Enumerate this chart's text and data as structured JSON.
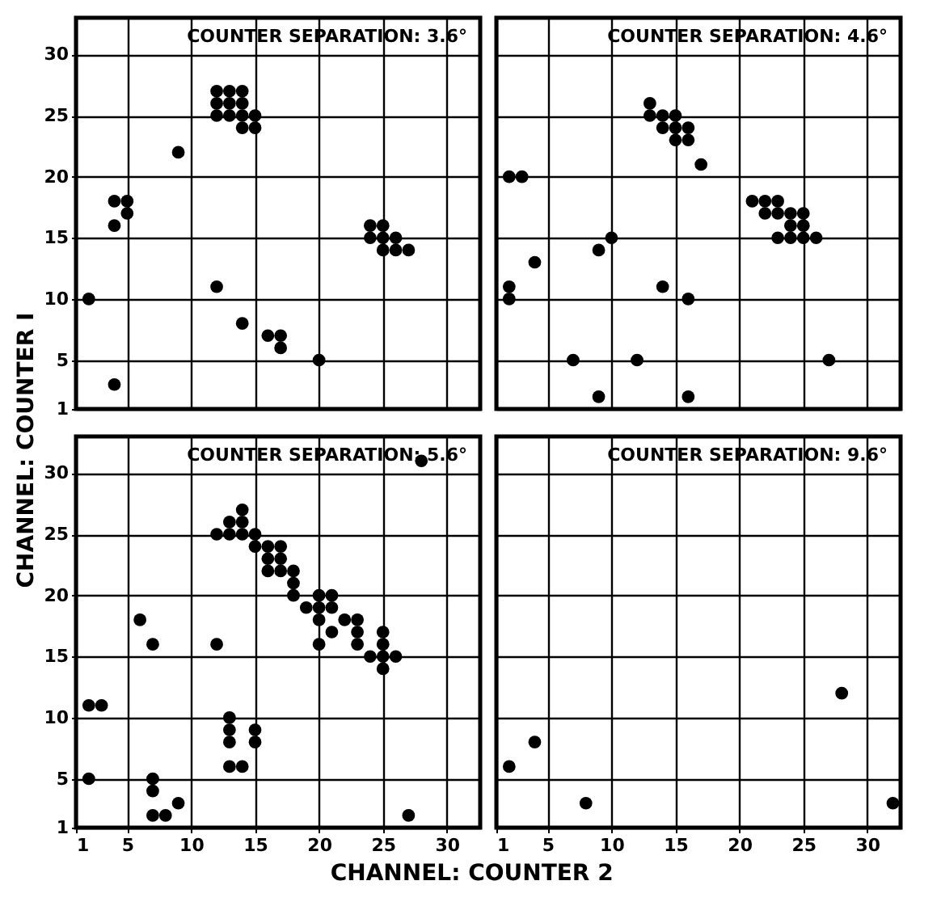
{
  "chart_data": [
    {
      "type": "scatter",
      "title": "COUNTER SEPARATION: 3.6°",
      "xlim": [
        1,
        32.6
      ],
      "ylim": [
        1,
        33
      ],
      "xticks": [
        1,
        5,
        10,
        15,
        20,
        25,
        30
      ],
      "yticks": [
        1,
        5,
        10,
        15,
        20,
        25,
        30
      ],
      "grid": true,
      "marker": "circle",
      "tick_labels": "y",
      "series": [
        {
          "color": "#000000",
          "x": [
            2,
            4,
            4,
            4,
            5,
            5,
            9,
            12,
            12,
            12,
            13,
            13,
            13,
            14,
            14,
            14,
            14,
            15,
            15,
            12,
            14,
            16,
            17,
            17,
            20,
            24,
            24,
            25,
            25,
            25,
            26,
            26,
            27
          ],
          "values": [
            10,
            3,
            16,
            18,
            18,
            17,
            22,
            27,
            26,
            25,
            27,
            26,
            25,
            27,
            26,
            25,
            24,
            25,
            24,
            11,
            8,
            7,
            7,
            6,
            5,
            16,
            15,
            16,
            15,
            14,
            15,
            14,
            14
          ]
        }
      ]
    },
    {
      "type": "scatter",
      "title": "COUNTER SEPARATION: 4.6°",
      "xlim": [
        1,
        32.6
      ],
      "ylim": [
        1,
        33
      ],
      "xticks": [
        1,
        5,
        10,
        15,
        20,
        25,
        30
      ],
      "yticks": [
        1,
        5,
        10,
        15,
        20,
        25,
        30
      ],
      "grid": true,
      "marker": "circle",
      "tick_labels": false,
      "series": [
        {
          "color": "#000000",
          "x": [
            2,
            3,
            2,
            2,
            4,
            9,
            10,
            14,
            16,
            7,
            12,
            27,
            9,
            16,
            13,
            13,
            14,
            15,
            14,
            15,
            16,
            15,
            16,
            17,
            21,
            22,
            23,
            22,
            23,
            24,
            25,
            24,
            25,
            23,
            24,
            25,
            26
          ],
          "values": [
            20,
            20,
            11,
            10,
            13,
            14,
            15,
            11,
            10,
            5,
            5,
            5,
            2,
            2,
            26,
            25,
            25,
            25,
            24,
            24,
            24,
            23,
            23,
            21,
            18,
            18,
            18,
            17,
            17,
            17,
            17,
            16,
            16,
            15,
            15,
            15,
            15
          ]
        }
      ]
    },
    {
      "type": "scatter",
      "title": "COUNTER SEPARATION: 5.6°",
      "xlabel": "CHANNEL: COUNTER 2",
      "ylabel": "CHANNEL: COUNTER I",
      "xlim": [
        1,
        32.6
      ],
      "ylim": [
        1,
        33
      ],
      "xticks": [
        1,
        5,
        10,
        15,
        20,
        25,
        30
      ],
      "yticks": [
        1,
        5,
        10,
        15,
        20,
        25,
        30
      ],
      "grid": true,
      "marker": "circle",
      "series": [
        {
          "color": "#000000",
          "x": [
            28,
            2,
            3,
            2,
            6,
            7,
            7,
            7,
            7,
            8,
            9,
            12,
            12,
            13,
            13,
            13,
            13,
            13,
            13,
            14,
            14,
            14,
            14,
            15,
            15,
            15,
            15,
            16,
            16,
            16,
            17,
            17,
            17,
            18,
            18,
            18,
            19,
            20,
            20,
            20,
            20,
            21,
            21,
            21,
            22,
            23,
            23,
            23,
            24,
            25,
            25,
            25,
            25,
            26,
            27
          ],
          "values": [
            31,
            11,
            11,
            5,
            18,
            16,
            5,
            4,
            2,
            2,
            3,
            16,
            25,
            26,
            25,
            10,
            9,
            8,
            6,
            27,
            26,
            25,
            6,
            25,
            24,
            9,
            8,
            24,
            23,
            22,
            24,
            23,
            22,
            22,
            21,
            20,
            19,
            20,
            19,
            18,
            16,
            20,
            19,
            17,
            18,
            18,
            17,
            16,
            15,
            17,
            16,
            15,
            14,
            15,
            2
          ]
        }
      ]
    },
    {
      "type": "scatter",
      "title": "COUNTER SEPARATION: 9.6°",
      "xlim": [
        1,
        32.6
      ],
      "ylim": [
        1,
        33
      ],
      "xticks": [
        1,
        5,
        10,
        15,
        20,
        25,
        30
      ],
      "yticks": [
        1,
        5,
        10,
        15,
        20,
        25,
        30
      ],
      "grid": true,
      "marker": "circle",
      "tick_labels": "x",
      "series": [
        {
          "color": "#000000",
          "x": [
            2,
            4,
            8,
            28,
            32
          ],
          "values": [
            6,
            8,
            3,
            12,
            3
          ]
        }
      ]
    }
  ]
}
